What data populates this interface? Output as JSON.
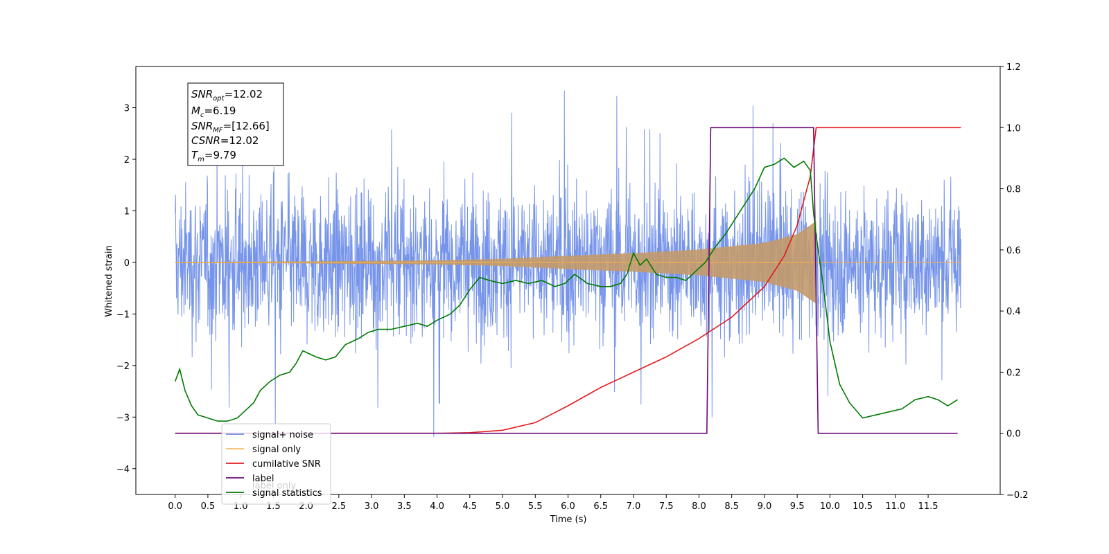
{
  "chart_data": {
    "type": "line",
    "title": "",
    "xlabel": "Time (s)",
    "ylabel": "Whitened strain",
    "xlim": [
      -0.6,
      12.6
    ],
    "ylim": [
      -4.5,
      3.8
    ],
    "y2lim": [
      -0.2,
      1.2
    ],
    "x_ticks": [
      "0.0",
      "0.5",
      "1.0",
      "1.5",
      "2.0",
      "2.5",
      "3.0",
      "3.5",
      "4.0",
      "4.5",
      "5.0",
      "5.5",
      "6.0",
      "6.5",
      "7.0",
      "7.5",
      "8.0",
      "8.5",
      "9.0",
      "9.5",
      "10.0",
      "10.5",
      "11.0",
      "11.5"
    ],
    "y_ticks": [
      "−4",
      "−3",
      "−2",
      "−1",
      "0",
      "1",
      "2",
      "3"
    ],
    "y2_ticks": [
      "−0.2",
      "0.0",
      "0.2",
      "0.4",
      "0.6",
      "0.8",
      "1.0",
      "1.2"
    ],
    "grid": false,
    "legend_position": "lower-left",
    "stats_box": {
      "snr_opt": {
        "base": "SNR",
        "sub": "opt",
        "value": "=12.02"
      },
      "mc": {
        "base": "M",
        "sub": "c",
        "value": "=6.19"
      },
      "snr_mf": {
        "base": "SNR",
        "sub": "MF",
        "value": "=[12.66]"
      },
      "csnr": {
        "base": "CSNR",
        "sub": "",
        "value": "=12.02"
      },
      "tm": {
        "base": "T",
        "sub": "m",
        "value": "=9.79"
      }
    },
    "series": [
      {
        "name": "signal+ noise",
        "axis": "left",
        "color": "#6f8ee8",
        "noise_envelope": {
          "x": [
            0.0,
            12.0
          ],
          "typical": 1.6,
          "peak": 3.4,
          "min": -4.1
        }
      },
      {
        "name": "signal only",
        "axis": "left",
        "color": "#f5b04a",
        "chirp_envelope": {
          "x": [
            0.0,
            2.0,
            4.0,
            5.0,
            6.0,
            7.0,
            8.0,
            9.0,
            9.5,
            9.79,
            9.8,
            12.0
          ],
          "y": [
            0.01,
            0.02,
            0.04,
            0.07,
            0.13,
            0.18,
            0.25,
            0.38,
            0.55,
            0.8,
            0.0,
            0.0
          ]
        }
      },
      {
        "name": "cumilative SNR",
        "axis": "right",
        "color": "#e31a1c",
        "x": [
          0.0,
          4.0,
          4.5,
          5.0,
          5.5,
          6.0,
          6.5,
          7.0,
          7.5,
          8.0,
          8.5,
          9.0,
          9.3,
          9.5,
          9.7,
          9.79,
          9.8,
          12.0
        ],
        "y": [
          0.0,
          0.0,
          0.002,
          0.01,
          0.035,
          0.09,
          0.15,
          0.2,
          0.25,
          0.31,
          0.38,
          0.48,
          0.58,
          0.68,
          0.84,
          1.0,
          1.0,
          1.0
        ]
      },
      {
        "name": "label",
        "axis": "right",
        "color": "#6a0a7a",
        "x": [
          0.0,
          8.12,
          8.18,
          9.75,
          9.82,
          11.95
        ],
        "y": [
          0.0,
          0.0,
          1.0,
          1.0,
          0.0,
          0.0
        ]
      },
      {
        "name": "label only",
        "axis": "right",
        "color": "#cccccc",
        "x": [],
        "y": []
      },
      {
        "name": "signal statistics",
        "axis": "right",
        "color": "#007a00",
        "x": [
          0.0,
          0.07,
          0.15,
          0.25,
          0.35,
          0.5,
          0.65,
          0.8,
          0.95,
          1.1,
          1.2,
          1.3,
          1.45,
          1.6,
          1.75,
          1.85,
          1.95,
          2.05,
          2.15,
          2.3,
          2.45,
          2.6,
          2.8,
          2.95,
          3.1,
          3.3,
          3.5,
          3.7,
          3.85,
          4.0,
          4.2,
          4.35,
          4.5,
          4.65,
          4.8,
          5.0,
          5.2,
          5.4,
          5.6,
          5.8,
          5.95,
          6.1,
          6.3,
          6.5,
          6.65,
          6.8,
          6.9,
          7.0,
          7.1,
          7.2,
          7.35,
          7.5,
          7.65,
          7.8,
          7.95,
          8.1,
          8.25,
          8.4,
          8.55,
          8.7,
          8.85,
          9.0,
          9.15,
          9.3,
          9.45,
          9.6,
          9.7,
          9.75,
          9.8,
          9.9,
          10.0,
          10.15,
          10.3,
          10.5,
          10.7,
          10.9,
          11.1,
          11.3,
          11.5,
          11.65,
          11.8,
          11.95
        ],
        "y": [
          0.17,
          0.21,
          0.14,
          0.09,
          0.06,
          0.05,
          0.04,
          0.04,
          0.05,
          0.08,
          0.1,
          0.14,
          0.17,
          0.19,
          0.2,
          0.23,
          0.27,
          0.26,
          0.25,
          0.24,
          0.25,
          0.29,
          0.31,
          0.33,
          0.34,
          0.34,
          0.35,
          0.36,
          0.35,
          0.37,
          0.39,
          0.42,
          0.47,
          0.51,
          0.5,
          0.49,
          0.5,
          0.49,
          0.5,
          0.48,
          0.49,
          0.52,
          0.49,
          0.48,
          0.48,
          0.49,
          0.52,
          0.59,
          0.55,
          0.57,
          0.52,
          0.51,
          0.51,
          0.5,
          0.53,
          0.56,
          0.61,
          0.65,
          0.7,
          0.75,
          0.8,
          0.87,
          0.88,
          0.9,
          0.87,
          0.89,
          0.86,
          0.72,
          0.63,
          0.48,
          0.3,
          0.16,
          0.1,
          0.05,
          0.06,
          0.07,
          0.08,
          0.11,
          0.12,
          0.11,
          0.09,
          0.11
        ]
      }
    ]
  }
}
